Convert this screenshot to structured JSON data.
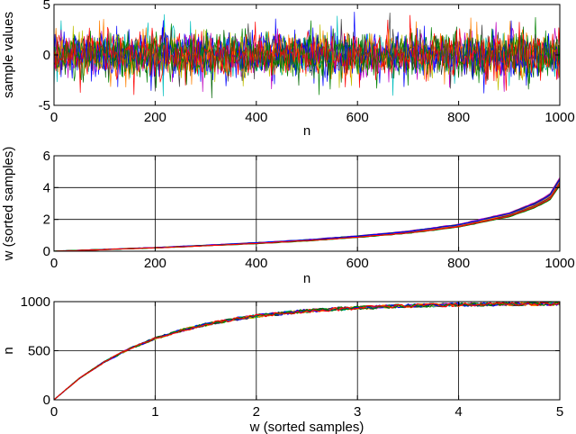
{
  "colors": [
    "#0000ff",
    "#008000",
    "#ff0000",
    "#00bfbf",
    "#bf00bf",
    "#bfbf00",
    "#404040",
    "#ff8000",
    "#006400"
  ],
  "chart_data": [
    {
      "type": "line",
      "xlabel": "n",
      "ylabel": "sample values",
      "xlim": [
        0,
        1000
      ],
      "ylim": [
        -5,
        5
      ],
      "xticks": [
        0,
        200,
        400,
        600,
        800,
        1000
      ],
      "yticks": [
        -5,
        0,
        5
      ],
      "grid": false,
      "series_count": 12,
      "series_shape": "dense noise between about -3 and 3 with occasional spikes up to about 4"
    },
    {
      "type": "line",
      "xlabel": "n",
      "ylabel": "w (sorted samples)",
      "xlim": [
        0,
        1000
      ],
      "ylim": [
        0,
        6
      ],
      "xticks": [
        0,
        200,
        400,
        600,
        800,
        1000
      ],
      "yticks": [
        0,
        2,
        4,
        6
      ],
      "grid": true,
      "series_count": 12,
      "series": [
        {
          "name": "",
          "x": [
            0,
            100,
            200,
            300,
            400,
            500,
            600,
            700,
            800,
            900,
            950,
            980,
            1000
          ],
          "y": [
            0.0,
            0.11,
            0.22,
            0.36,
            0.51,
            0.69,
            0.92,
            1.2,
            1.61,
            2.3,
            2.9,
            3.4,
            4.4
          ]
        }
      ]
    },
    {
      "type": "line",
      "xlabel": "w (sorted samples)",
      "ylabel": "n",
      "xlim": [
        0,
        5
      ],
      "ylim": [
        0,
        1000
      ],
      "xticks": [
        0,
        1,
        2,
        3,
        4,
        5
      ],
      "yticks": [
        0,
        500,
        1000
      ],
      "grid": true,
      "series_count": 12,
      "series": [
        {
          "name": "",
          "x": [
            0,
            0.25,
            0.5,
            0.75,
            1.0,
            1.25,
            1.5,
            1.75,
            2.0,
            2.5,
            3.0,
            3.5,
            4.0,
            4.5,
            5.0
          ],
          "y": [
            0,
            221,
            393,
            528,
            632,
            713,
            777,
            826,
            865,
            918,
            950,
            970,
            982,
            989,
            993
          ]
        }
      ]
    }
  ]
}
